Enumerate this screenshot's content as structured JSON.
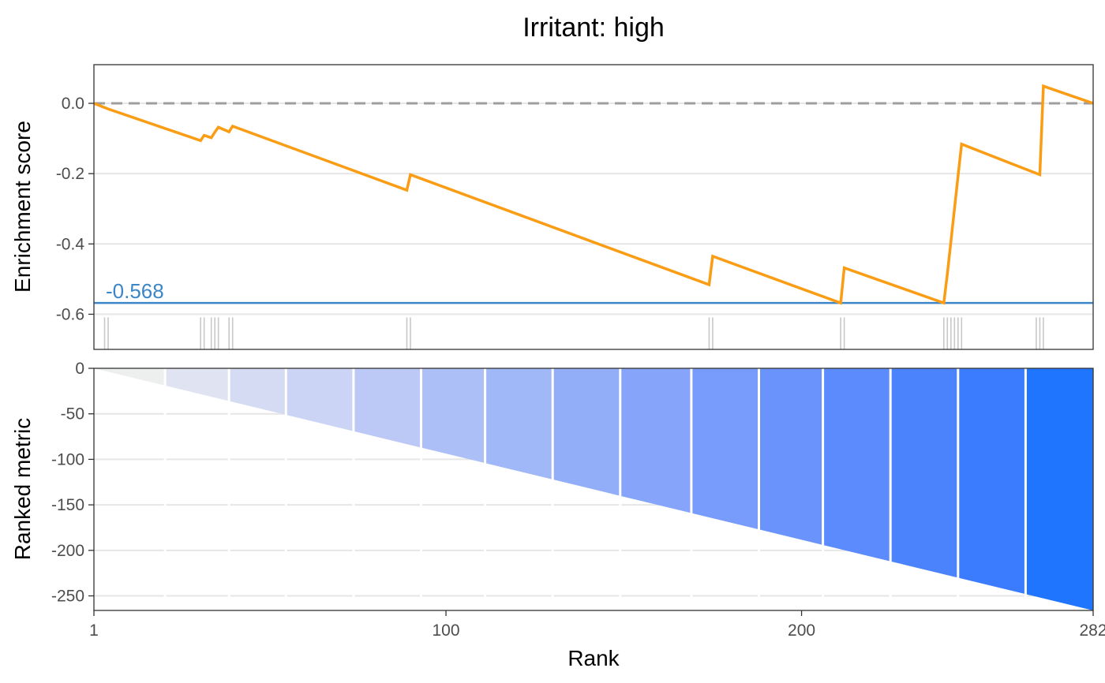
{
  "chart_data": [
    {
      "type": "line",
      "title": "Irritant: high",
      "xlabel": "",
      "ylabel": "Enrichment score",
      "xlim": [
        1,
        282
      ],
      "ylim": [
        -0.7,
        0.11
      ],
      "y_ticks": [
        0.0,
        -0.2,
        -0.4,
        -0.6
      ],
      "y_tick_labels": [
        "0.0",
        "-0.2",
        "-0.4",
        "-0.6"
      ],
      "grid": "horizontal",
      "reference_line": 0.0,
      "enrichment_score": -0.568,
      "enrichment_score_label": "-0.568",
      "line_color": "#FA9D14",
      "es_color": "#3A86C8",
      "series": [
        {
          "x": [
            1,
            5,
            31,
            32,
            34,
            35,
            36,
            39,
            40,
            89,
            90,
            174,
            175,
            211,
            212,
            240,
            241,
            242,
            243,
            244,
            245,
            267,
            268,
            282
          ],
          "values": [
            0.0,
            -0.016,
            -0.106,
            -0.091,
            -0.098,
            -0.082,
            -0.068,
            -0.081,
            -0.065,
            -0.247,
            -0.203,
            -0.516,
            -0.435,
            -0.568,
            -0.468,
            -0.568,
            -0.485,
            -0.393,
            -0.3,
            -0.207,
            -0.116,
            -0.203,
            0.049,
            0.0
          ]
        }
      ],
      "hit_positions": [
        4,
        5,
        31,
        32,
        34,
        35,
        36,
        39,
        40,
        89,
        90,
        174,
        175,
        211,
        212,
        240,
        241,
        242,
        243,
        244,
        245,
        266,
        267,
        268
      ]
    },
    {
      "type": "area",
      "title": "",
      "xlabel": "Rank",
      "ylabel": "Ranked metric",
      "xlim": [
        1,
        282
      ],
      "ylim": [
        -266,
        0
      ],
      "x_ticks": [
        1,
        100,
        200,
        282
      ],
      "x_tick_labels": [
        "1",
        "100",
        "200",
        "282"
      ],
      "y_ticks": [
        0,
        -50,
        -100,
        -150,
        -200,
        -250
      ],
      "y_tick_labels": [
        "0",
        "-50",
        "-100",
        "-150",
        "-200",
        "-250"
      ],
      "grid": "horizontal",
      "series": [
        {
          "x": [
            1,
            282
          ],
          "values": [
            0,
            -266
          ]
        }
      ],
      "segment_breaks": [
        21,
        39,
        55,
        74,
        93,
        111,
        130,
        149,
        169,
        188,
        206,
        225,
        244,
        263
      ],
      "segment_colors": [
        "#EDEFEF",
        "#E0E3F2",
        "#D6DBF4",
        "#CCD4F5",
        "#BCC9F6",
        "#ADBFF7",
        "#A0B7F8",
        "#93AEF9",
        "#85A4FA",
        "#789CFB",
        "#6A94FC",
        "#5C8BFD",
        "#4B83FD",
        "#3B7CFE",
        "#1F75FE"
      ]
    }
  ]
}
